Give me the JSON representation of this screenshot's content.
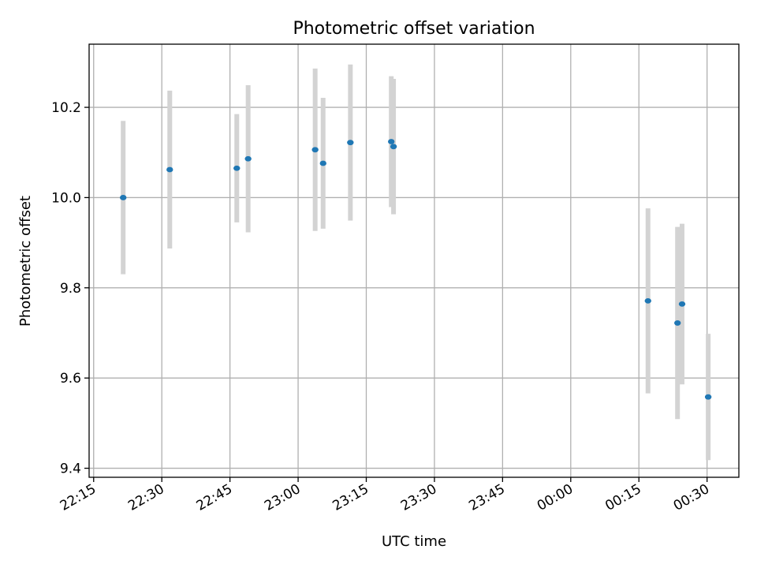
{
  "chart_data": {
    "type": "scatter",
    "title": "Photometric offset variation",
    "xlabel": "UTC time",
    "ylabel": "Photometric offset",
    "grid": true,
    "x_type": "time",
    "xlim": [
      "22:14",
      "00:37"
    ],
    "ylim": [
      9.38,
      10.34
    ],
    "x_ticks": [
      "22:15",
      "22:30",
      "22:45",
      "23:00",
      "23:15",
      "23:30",
      "23:45",
      "00:00",
      "00:15",
      "00:30"
    ],
    "y_ticks": [
      "9.4",
      "9.6",
      "9.8",
      "10.0",
      "10.2"
    ],
    "colors": {
      "point": "#1f77b4",
      "errorbar": "#d3d3d3",
      "grid": "#b0b0b0"
    },
    "points": [
      {
        "x": "22:21:30",
        "y": 10.0,
        "err": 0.17
      },
      {
        "x": "22:31:45",
        "y": 10.062,
        "err": 0.175
      },
      {
        "x": "22:46:30",
        "y": 10.065,
        "err": 0.12
      },
      {
        "x": "22:49:00",
        "y": 10.086,
        "err": 0.163
      },
      {
        "x": "23:03:45",
        "y": 10.106,
        "err": 0.18
      },
      {
        "x": "23:05:30",
        "y": 10.076,
        "err": 0.145
      },
      {
        "x": "23:11:30",
        "y": 10.122,
        "err": 0.173
      },
      {
        "x": "23:20:30",
        "y": 10.124,
        "err": 0.145
      },
      {
        "x": "23:21:00",
        "y": 10.113,
        "err": 0.15
      },
      {
        "x": "00:17:00",
        "y": 9.771,
        "err": 0.205
      },
      {
        "x": "00:23:30",
        "y": 9.722,
        "err": 0.213
      },
      {
        "x": "00:24:30",
        "y": 9.764,
        "err": 0.178
      },
      {
        "x": "00:30:15",
        "y": 9.558,
        "err": 0.14
      }
    ]
  }
}
